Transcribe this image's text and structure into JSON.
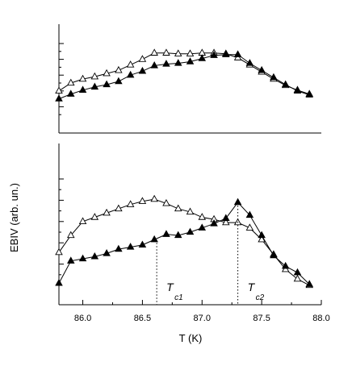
{
  "chart_data": {
    "type": "line",
    "xlabel": "T (K)",
    "ylabel": "EBIV (arb. un.)",
    "xlim": [
      85.8,
      88.0
    ],
    "x_ticks": [
      "86.0",
      "86.5",
      "87.0",
      "87.5",
      "88.0"
    ],
    "x_tick_values": [
      86.0,
      86.5,
      87.0,
      87.5,
      88.0
    ],
    "panels": [
      {
        "name": "top",
        "ylim": [
          0,
          100
        ],
        "y_tick_values": [
          20,
          40,
          60,
          80,
          100
        ],
        "series": [
          {
            "marker": "open-triangle",
            "x": [
              85.8,
              85.9,
              86.0,
              86.1,
              86.2,
              86.3,
              86.4,
              86.5,
              86.6,
              86.7,
              86.8,
              86.9,
              87.0,
              87.1,
              87.2,
              87.3,
              87.4,
              87.5,
              87.6,
              87.7,
              87.8,
              87.9
            ],
            "y": [
              40,
              50,
              55,
              58,
              62,
              66,
              73,
              80,
              88,
              88,
              87,
              87,
              88,
              88,
              87,
              82,
              73,
              64,
              55,
              47,
              41,
              36
            ]
          },
          {
            "marker": "filled-triangle",
            "x": [
              85.8,
              85.9,
              86.0,
              86.1,
              86.2,
              86.3,
              86.4,
              86.5,
              86.6,
              86.7,
              86.8,
              86.9,
              87.0,
              87.1,
              87.2,
              87.3,
              87.4,
              87.5,
              87.6,
              87.7,
              87.8,
              87.9
            ],
            "y": [
              30,
              36,
              41,
              45,
              48,
              52,
              60,
              65,
              72,
              74,
              75,
              77,
              81,
              85,
              86,
              86,
              75,
              66,
              57,
              48,
              40,
              35
            ]
          }
        ]
      },
      {
        "name": "bottom",
        "ylim": [
          0,
          100
        ],
        "y_tick_values": [
          20,
          40,
          60,
          80,
          100
        ],
        "series": [
          {
            "marker": "open-triangle",
            "x": [
              85.8,
              85.9,
              86.0,
              86.1,
              86.2,
              86.3,
              86.4,
              86.5,
              86.6,
              86.7,
              86.8,
              86.9,
              87.0,
              87.1,
              87.2,
              87.3,
              87.4,
              87.5,
              87.6,
              87.7,
              87.8,
              87.9
            ],
            "y": [
              31,
              47,
              60,
              64,
              68,
              72,
              76,
              79,
              81,
              77,
              72,
              69,
              64,
              62,
              59,
              59,
              54,
              43,
              29,
              15,
              6,
              0
            ]
          },
          {
            "marker": "filled-triangle",
            "x": [
              85.8,
              85.9,
              86.0,
              86.1,
              86.2,
              86.3,
              86.4,
              86.5,
              86.6,
              86.7,
              86.8,
              86.9,
              87.0,
              87.1,
              87.2,
              87.3,
              87.4,
              87.5,
              87.6,
              87.7,
              87.8,
              87.9
            ],
            "y": [
              2,
              23,
              25,
              27,
              30,
              34,
              36,
              38,
              43,
              48,
              47,
              50,
              54,
              58,
              63,
              78,
              66,
              47,
              28,
              18,
              12,
              1
            ]
          }
        ]
      }
    ],
    "annotations": [
      {
        "label": "T",
        "sub": "c1",
        "x": 86.62
      },
      {
        "label": "T",
        "sub": "c2",
        "x": 87.3
      }
    ]
  }
}
